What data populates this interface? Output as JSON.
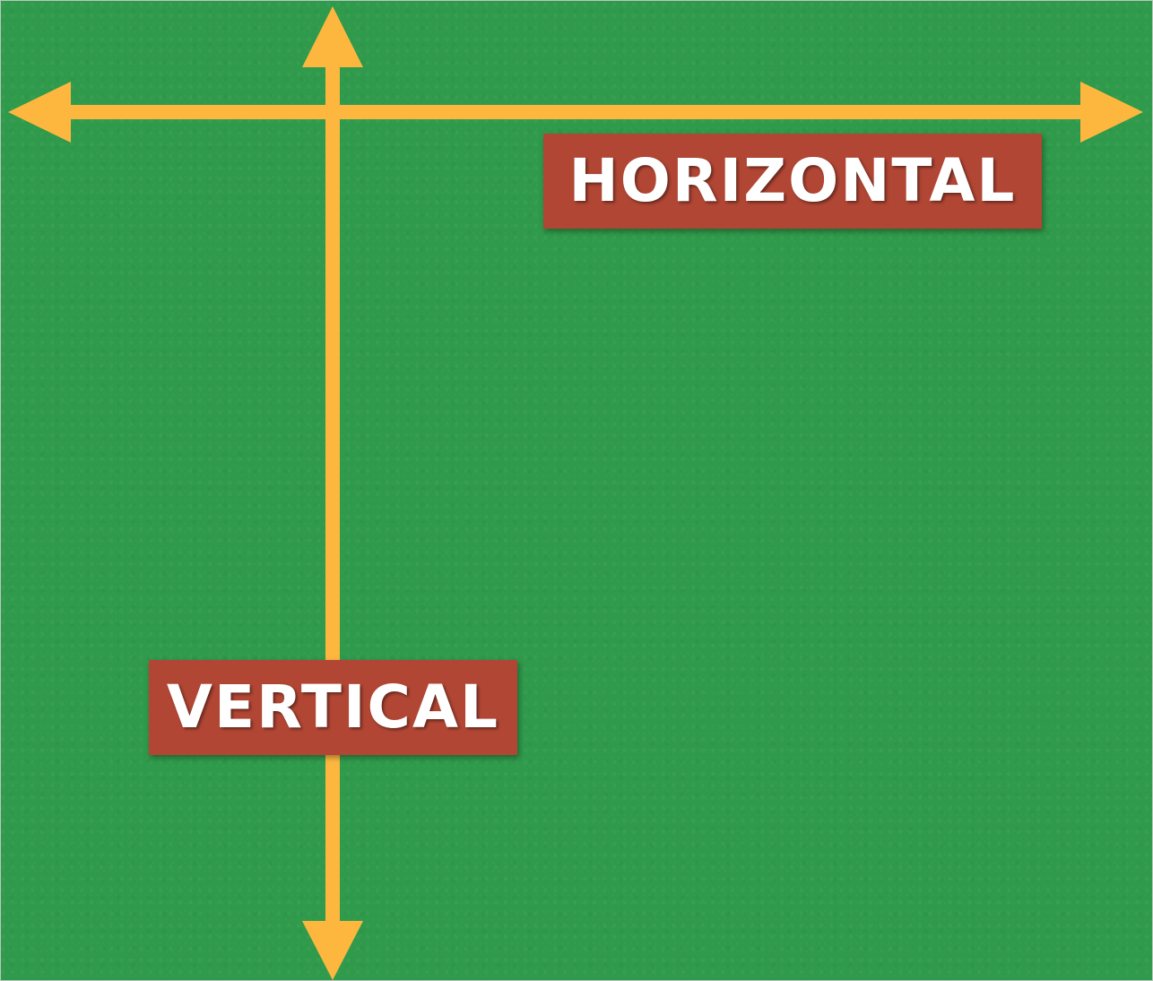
{
  "colors": {
    "background": "#2f9a4b",
    "arrow": "#fdb73f",
    "label_background": "#b24634",
    "label_text": "#ffffff"
  },
  "labels": {
    "horizontal": "HORIZONTAL",
    "vertical": "VERTICAL"
  }
}
